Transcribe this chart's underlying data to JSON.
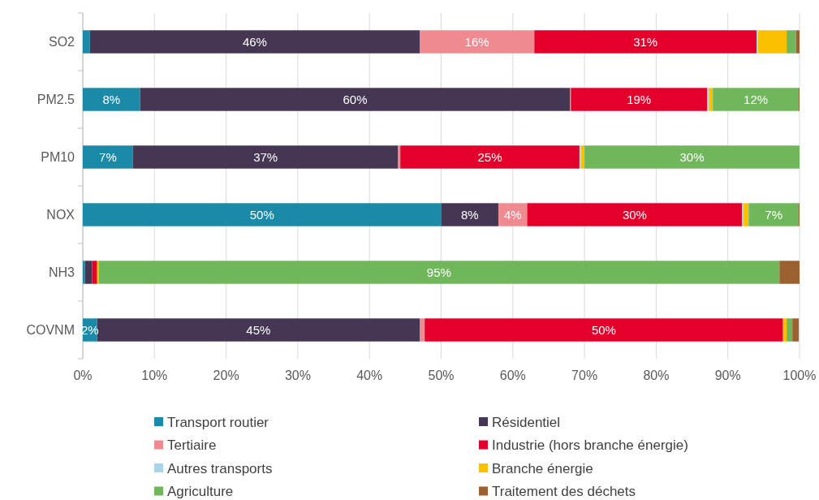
{
  "chart_data": {
    "type": "bar",
    "orientation": "horizontal",
    "stacked": true,
    "categories": [
      "SO2",
      "PM2.5",
      "PM10",
      "NOX",
      "NH3",
      "COVNM"
    ],
    "series": [
      {
        "name": "Transport routier",
        "color": "#1b8aa8",
        "values": [
          1,
          8,
          7,
          50,
          0.3,
          2
        ],
        "value_labels": [
          null,
          "8%",
          "7%",
          "50%",
          null,
          "2%"
        ]
      },
      {
        "name": "Résidentiel",
        "color": "#453654",
        "values": [
          46,
          60,
          37,
          8,
          1,
          45
        ],
        "value_labels": [
          "46%",
          "60%",
          "37%",
          "8%",
          null,
          "45%"
        ]
      },
      {
        "name": "Tertiaire",
        "color": "#f08a91",
        "values": [
          16,
          0.1,
          0.3,
          4,
          0,
          0.7
        ],
        "value_labels": [
          "16%",
          null,
          null,
          "4%",
          null,
          null
        ]
      },
      {
        "name": "Industrie (hors branche énergie)",
        "color": "#e4002b",
        "values": [
          31,
          19,
          25,
          30,
          0.7,
          50
        ],
        "value_labels": [
          "31%",
          "19%",
          "25%",
          "30%",
          null,
          "50%"
        ]
      },
      {
        "name": "Autres transports",
        "color": "#a6d4e8",
        "values": [
          0.2,
          0.3,
          0.2,
          0.2,
          0,
          null
        ],
        "value_labels": [
          null,
          null,
          null,
          null,
          null,
          null
        ]
      },
      {
        "name": "Branche énergie",
        "color": "#fbc100",
        "values": [
          4,
          0.5,
          0.5,
          0.7,
          0.2,
          0.5
        ],
        "value_labels": [
          null,
          null,
          null,
          null,
          null,
          null
        ]
      },
      {
        "name": "Agriculture",
        "color": "#70b75c",
        "values": [
          1.3,
          12,
          30,
          7,
          95,
          0.8
        ],
        "value_labels": [
          null,
          "12%",
          "30%",
          "7%",
          "95%",
          null
        ]
      },
      {
        "name": "Traitement des déchets",
        "color": "#9c6130",
        "values": [
          0.5,
          0.1,
          0,
          0.1,
          2.8,
          0.9
        ],
        "value_labels": [
          null,
          null,
          null,
          null,
          null,
          null
        ]
      }
    ],
    "xlim": [
      0,
      100
    ],
    "xticks": [
      {
        "value": 0,
        "label": "0%"
      },
      {
        "value": 10,
        "label": "10%"
      },
      {
        "value": 20,
        "label": "20%"
      },
      {
        "value": 30,
        "label": "30%"
      },
      {
        "value": 40,
        "label": "40%"
      },
      {
        "value": 50,
        "label": "50%"
      },
      {
        "value": 60,
        "label": "60%"
      },
      {
        "value": 70,
        "label": "70%"
      },
      {
        "value": 80,
        "label": "80%"
      },
      {
        "value": 90,
        "label": "90%"
      },
      {
        "value": 100,
        "label": "100%"
      }
    ],
    "grid": "x",
    "legend": "bottom"
  }
}
